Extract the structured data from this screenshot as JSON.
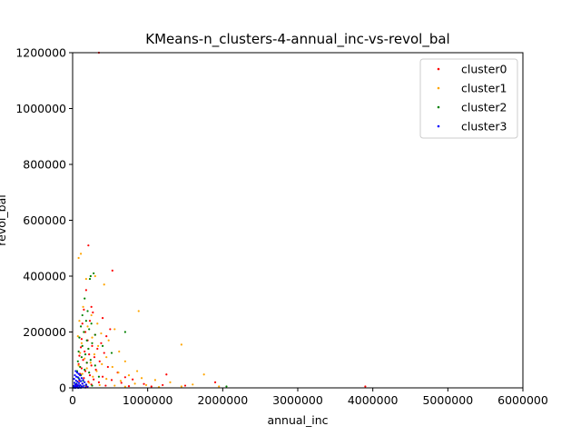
{
  "chart_data": {
    "type": "scatter",
    "title": "KMeans-n_clusters-4-annual_inc-vs-revol_bal",
    "xlabel": "annual_inc",
    "ylabel": "revol_bal",
    "xlim": [
      0,
      6000000
    ],
    "ylim": [
      0,
      1200000
    ],
    "xticks": [
      0,
      1000000,
      2000000,
      3000000,
      4000000,
      5000000,
      6000000
    ],
    "xtick_labels": [
      "0",
      "1000000",
      "2000000",
      "3000000",
      "4000000",
      "5000000",
      "6000000"
    ],
    "yticks": [
      0,
      200000,
      400000,
      600000,
      800000,
      1000000,
      1200000
    ],
    "ytick_labels": [
      "0",
      "200000",
      "400000",
      "600000",
      "800000",
      "1000000",
      "1200000"
    ],
    "grid": false,
    "legend_position": "top-right",
    "series": [
      {
        "name": "cluster0",
        "color": "#ff0000",
        "points": [
          [
            350000,
            1200000
          ],
          [
            210000,
            510000
          ],
          [
            530000,
            420000
          ],
          [
            180000,
            350000
          ],
          [
            150000,
            280000
          ],
          [
            250000,
            290000
          ],
          [
            270000,
            270000
          ],
          [
            400000,
            250000
          ],
          [
            230000,
            240000
          ],
          [
            130000,
            230000
          ],
          [
            500000,
            210000
          ],
          [
            170000,
            200000
          ],
          [
            300000,
            190000
          ],
          [
            450000,
            185000
          ],
          [
            120000,
            175000
          ],
          [
            200000,
            170000
          ],
          [
            380000,
            160000
          ],
          [
            260000,
            150000
          ],
          [
            110000,
            145000
          ],
          [
            330000,
            140000
          ],
          [
            160000,
            130000
          ],
          [
            420000,
            125000
          ],
          [
            220000,
            120000
          ],
          [
            90000,
            115000
          ],
          [
            290000,
            110000
          ],
          [
            140000,
            100000
          ],
          [
            360000,
            95000
          ],
          [
            190000,
            90000
          ],
          [
            80000,
            85000
          ],
          [
            250000,
            80000
          ],
          [
            470000,
            75000
          ],
          [
            120000,
            70000
          ],
          [
            310000,
            65000
          ],
          [
            170000,
            60000
          ],
          [
            600000,
            55000
          ],
          [
            100000,
            50000
          ],
          [
            230000,
            45000
          ],
          [
            400000,
            40000
          ],
          [
            700000,
            38000
          ],
          [
            150000,
            35000
          ],
          [
            280000,
            30000
          ],
          [
            520000,
            28000
          ],
          [
            800000,
            30000
          ],
          [
            90000,
            25000
          ],
          [
            210000,
            22000
          ],
          [
            350000,
            20000
          ],
          [
            650000,
            18000
          ],
          [
            130000,
            15000
          ],
          [
            950000,
            14000
          ],
          [
            1200000,
            10000
          ],
          [
            1250000,
            48000
          ],
          [
            1500000,
            8000
          ],
          [
            1900000,
            20000
          ],
          [
            3900000,
            5000
          ],
          [
            250000,
            12000
          ],
          [
            60000,
            10000
          ],
          [
            440000,
            8000
          ],
          [
            750000,
            6000
          ],
          [
            1050000,
            5000
          ],
          [
            180000,
            5000
          ]
        ]
      },
      {
        "name": "cluster1",
        "color": "#ffa500",
        "points": [
          [
            110000,
            480000
          ],
          [
            80000,
            465000
          ],
          [
            300000,
            400000
          ],
          [
            420000,
            370000
          ],
          [
            180000,
            390000
          ],
          [
            140000,
            290000
          ],
          [
            250000,
            260000
          ],
          [
            880000,
            275000
          ],
          [
            330000,
            230000
          ],
          [
            90000,
            240000
          ],
          [
            200000,
            220000
          ],
          [
            560000,
            210000
          ],
          [
            150000,
            200000
          ],
          [
            380000,
            195000
          ],
          [
            70000,
            185000
          ],
          [
            260000,
            180000
          ],
          [
            480000,
            170000
          ],
          [
            1450000,
            155000
          ],
          [
            120000,
            160000
          ],
          [
            340000,
            150000
          ],
          [
            210000,
            140000
          ],
          [
            620000,
            130000
          ],
          [
            100000,
            125000
          ],
          [
            290000,
            120000
          ],
          [
            450000,
            110000
          ],
          [
            160000,
            105000
          ],
          [
            700000,
            95000
          ],
          [
            240000,
            90000
          ],
          [
            390000,
            85000
          ],
          [
            80000,
            80000
          ],
          [
            530000,
            75000
          ],
          [
            190000,
            70000
          ],
          [
            860000,
            60000
          ],
          [
            320000,
            60000
          ],
          [
            610000,
            55000
          ],
          [
            130000,
            50000
          ],
          [
            750000,
            45000
          ],
          [
            1750000,
            48000
          ],
          [
            270000,
            40000
          ],
          [
            920000,
            35000
          ],
          [
            450000,
            32000
          ],
          [
            1100000,
            28000
          ],
          [
            640000,
            25000
          ],
          [
            1300000,
            20000
          ],
          [
            220000,
            18000
          ],
          [
            830000,
            15000
          ],
          [
            1600000,
            12000
          ],
          [
            980000,
            10000
          ],
          [
            1450000,
            5000
          ],
          [
            1950000,
            5000
          ],
          [
            560000,
            8000
          ],
          [
            360000,
            10000
          ],
          [
            120000,
            6000
          ],
          [
            700000,
            4000
          ],
          [
            1150000,
            3000
          ]
        ]
      },
      {
        "name": "cluster2",
        "color": "#008000",
        "points": [
          [
            280000,
            410000
          ],
          [
            240000,
            400000
          ],
          [
            230000,
            390000
          ],
          [
            160000,
            320000
          ],
          [
            200000,
            275000
          ],
          [
            130000,
            260000
          ],
          [
            700000,
            200000
          ],
          [
            180000,
            240000
          ],
          [
            250000,
            230000
          ],
          [
            110000,
            220000
          ],
          [
            220000,
            210000
          ],
          [
            150000,
            200000
          ],
          [
            300000,
            190000
          ],
          [
            90000,
            180000
          ],
          [
            190000,
            170000
          ],
          [
            260000,
            160000
          ],
          [
            130000,
            150000
          ],
          [
            400000,
            150000
          ],
          [
            210000,
            140000
          ],
          [
            80000,
            130000
          ],
          [
            170000,
            120000
          ],
          [
            520000,
            125000
          ],
          [
            120000,
            110000
          ],
          [
            240000,
            100000
          ],
          [
            70000,
            95000
          ],
          [
            190000,
            90000
          ],
          [
            300000,
            80000
          ],
          [
            100000,
            75000
          ],
          [
            160000,
            65000
          ],
          [
            60000,
            60000
          ],
          [
            220000,
            55000
          ],
          [
            110000,
            45000
          ],
          [
            350000,
            40000
          ],
          [
            80000,
            35000
          ],
          [
            140000,
            25000
          ],
          [
            2050000,
            5000
          ],
          [
            50000,
            15000
          ],
          [
            180000,
            10000
          ],
          [
            260000,
            8000
          ],
          [
            90000,
            5000
          ]
        ]
      },
      {
        "name": "cluster3",
        "color": "#0000ff",
        "points": [
          [
            40000,
            60000
          ],
          [
            60000,
            55000
          ],
          [
            80000,
            50000
          ],
          [
            30000,
            45000
          ],
          [
            100000,
            45000
          ],
          [
            50000,
            40000
          ],
          [
            70000,
            38000
          ],
          [
            120000,
            35000
          ],
          [
            20000,
            32000
          ],
          [
            90000,
            30000
          ],
          [
            140000,
            28000
          ],
          [
            45000,
            26000
          ],
          [
            110000,
            24000
          ],
          [
            65000,
            22000
          ],
          [
            160000,
            20000
          ],
          [
            25000,
            18000
          ],
          [
            85000,
            17000
          ],
          [
            130000,
            15000
          ],
          [
            55000,
            14000
          ],
          [
            180000,
            12000
          ],
          [
            35000,
            11000
          ],
          [
            100000,
            10000
          ],
          [
            75000,
            9000
          ],
          [
            150000,
            8000
          ],
          [
            15000,
            7000
          ],
          [
            45000,
            6000
          ],
          [
            120000,
            5500
          ],
          [
            60000,
            4500
          ],
          [
            200000,
            4000
          ],
          [
            30000,
            3000
          ],
          [
            90000,
            2500
          ],
          [
            140000,
            2000
          ],
          [
            50000,
            1500
          ],
          [
            10000,
            1000
          ],
          [
            170000,
            1000
          ],
          [
            70000,
            500
          ],
          [
            25000,
            500
          ],
          [
            110000,
            300
          ],
          [
            40000,
            200
          ],
          [
            80000,
            100
          ]
        ]
      }
    ]
  }
}
